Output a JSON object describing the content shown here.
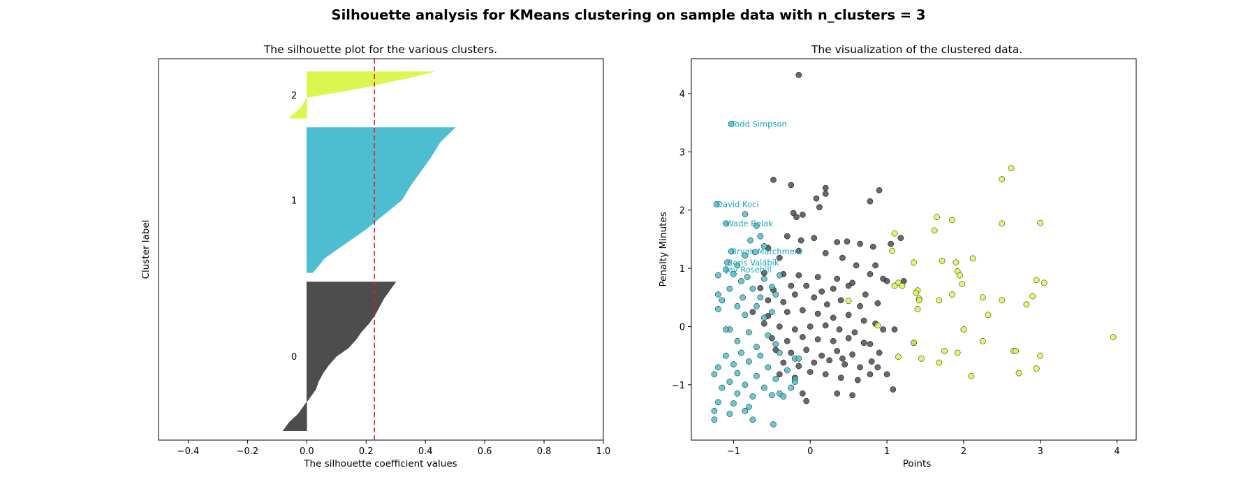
{
  "figure": {
    "suptitle": "Silhouette analysis for KMeans clustering on sample data with n_clusters = 3"
  },
  "chart_data": [
    {
      "type": "area",
      "title": "The silhouette plot for the various clusters.",
      "xlabel": "The silhouette coefficient values",
      "ylabel": "Cluster label",
      "xlim": [
        -0.5,
        1.0
      ],
      "xticks": [
        -0.4,
        -0.2,
        0.0,
        0.2,
        0.4,
        0.6,
        0.8,
        1.0
      ],
      "xtick_labels": [
        "−0.4",
        "−0.2",
        "0.0",
        "0.2",
        "0.4",
        "0.6",
        "0.8",
        "1.0"
      ],
      "ylim": [
        0,
        410
      ],
      "yticks": [],
      "average_silhouette": 0.228,
      "average_line_color": "#d62728",
      "clusters": [
        {
          "label": "0",
          "color": "#4d4d4d",
          "y_lower": 10,
          "y_upper": 170,
          "values_desc": [
            0.3,
            0.28,
            0.26,
            0.245,
            0.23,
            0.21,
            0.185,
            0.165,
            0.14,
            0.1,
            0.075,
            0.055,
            0.04,
            0.03,
            0.01,
            -0.01,
            -0.03,
            -0.06,
            -0.08
          ]
        },
        {
          "label": "1",
          "color": "#4dbecf",
          "y_lower": 180,
          "y_upper": 336,
          "values_desc": [
            0.5,
            0.45,
            0.42,
            0.385,
            0.35,
            0.32,
            0.26,
            0.2,
            0.13,
            0.06,
            0.02
          ]
        },
        {
          "label": "2",
          "color": "#dbf64f",
          "y_lower": 346,
          "y_upper": 396,
          "values_desc": [
            0.43,
            0.36,
            0.275,
            0.2,
            0.1,
            0.0,
            -0.01,
            -0.02,
            -0.04,
            -0.06
          ]
        }
      ]
    },
    {
      "type": "scatter",
      "title": "The visualization of the clustered data.",
      "xlabel": "Points",
      "ylabel": "Penalty Minutes",
      "xlim": [
        -1.55,
        4.25
      ],
      "ylim": [
        -1.95,
        4.6
      ],
      "xticks": [
        -1,
        0,
        1,
        2,
        3,
        4
      ],
      "xtick_labels": [
        "−1",
        "0",
        "1",
        "2",
        "3",
        "4"
      ],
      "yticks": [
        -1,
        0,
        1,
        2,
        3,
        4
      ],
      "ytick_labels": [
        "−1",
        "0",
        "1",
        "2",
        "3",
        "4"
      ],
      "cluster_colors": [
        "#4d4d4d",
        "#4dbecf",
        "#dbf64f"
      ],
      "annotation_color": "#17a8c0",
      "annotations": [
        {
          "text": "Todd Simpson",
          "x": -1.03,
          "y": 3.48
        },
        {
          "text": "David Koci",
          "x": -1.22,
          "y": 2.1
        },
        {
          "text": "Wade Belak",
          "x": -1.1,
          "y": 1.77
        },
        {
          "text": "Bryan Marchment",
          "x": -1.03,
          "y": 1.29
        },
        {
          "text": "Boris Valábik",
          "x": -1.08,
          "y": 1.1
        },
        {
          "text": "Jay Rosehill",
          "x": -1.1,
          "y": 0.98
        }
      ],
      "points_cluster_0": [
        [
          -0.15,
          4.32
        ],
        [
          -0.48,
          2.52
        ],
        [
          -0.25,
          2.43
        ],
        [
          0.08,
          2.2
        ],
        [
          0.2,
          2.38
        ],
        [
          0.2,
          2.28
        ],
        [
          0.78,
          2.15
        ],
        [
          0.9,
          2.34
        ],
        [
          -0.22,
          1.95
        ],
        [
          -0.1,
          1.92
        ],
        [
          0.12,
          2.05
        ],
        [
          -0.18,
          1.88
        ],
        [
          -0.3,
          1.55
        ],
        [
          -0.12,
          1.48
        ],
        [
          0.05,
          1.52
        ],
        [
          0.35,
          1.45
        ],
        [
          0.48,
          1.46
        ],
        [
          0.65,
          1.42
        ],
        [
          0.82,
          1.37
        ],
        [
          1.05,
          1.42
        ],
        [
          1.18,
          1.52
        ],
        [
          -0.55,
          1.35
        ],
        [
          -0.4,
          1.18
        ],
        [
          -0.15,
          1.3
        ],
        [
          0.2,
          1.26
        ],
        [
          0.42,
          1.18
        ],
        [
          0.6,
          1.05
        ],
        [
          0.85,
          1.05
        ],
        [
          0.95,
          0.82
        ],
        [
          -0.6,
          0.92
        ],
        [
          -0.35,
          0.9
        ],
        [
          -0.15,
          0.88
        ],
        [
          0.1,
          0.85
        ],
        [
          0.35,
          0.82
        ],
        [
          0.55,
          0.75
        ],
        [
          0.78,
          0.9
        ],
        [
          1.0,
          0.78
        ],
        [
          1.22,
          0.78
        ],
        [
          -0.65,
          0.66
        ],
        [
          -0.48,
          0.63
        ],
        [
          -0.25,
          0.7
        ],
        [
          -0.05,
          0.7
        ],
        [
          0.15,
          0.6
        ],
        [
          0.3,
          0.65
        ],
        [
          0.5,
          0.7
        ],
        [
          0.72,
          0.55
        ],
        [
          0.88,
          0.4
        ],
        [
          -0.55,
          0.45
        ],
        [
          -0.35,
          0.42
        ],
        [
          -0.2,
          0.55
        ],
        [
          0.05,
          0.5
        ],
        [
          0.22,
          0.38
        ],
        [
          0.4,
          0.45
        ],
        [
          0.65,
          0.35
        ],
        [
          0.85,
          0.05
        ],
        [
          -0.75,
          0.25
        ],
        [
          -0.55,
          0.18
        ],
        [
          -0.3,
          0.25
        ],
        [
          -0.1,
          0.28
        ],
        [
          0.1,
          0.22
        ],
        [
          0.3,
          0.15
        ],
        [
          0.5,
          0.2
        ],
        [
          0.7,
          0.1
        ],
        [
          -0.6,
          0.05
        ],
        [
          -0.4,
          0.0
        ],
        [
          -0.2,
          -0.05
        ],
        [
          0.0,
          0.0
        ],
        [
          0.2,
          0.02
        ],
        [
          0.38,
          -0.05
        ],
        [
          0.58,
          -0.1
        ],
        [
          0.78,
          -0.3
        ],
        [
          0.95,
          -0.05
        ],
        [
          1.1,
          -0.05
        ],
        [
          -0.5,
          -0.2
        ],
        [
          -0.3,
          -0.25
        ],
        [
          -0.1,
          -0.18
        ],
        [
          0.1,
          -0.22
        ],
        [
          0.3,
          -0.25
        ],
        [
          0.5,
          -0.2
        ],
        [
          0.7,
          -0.28
        ],
        [
          0.9,
          -0.45
        ],
        [
          -0.45,
          -0.4
        ],
        [
          -0.25,
          -0.45
        ],
        [
          -0.05,
          -0.4
        ],
        [
          0.15,
          -0.5
        ],
        [
          0.35,
          -0.42
        ],
        [
          0.55,
          -0.48
        ],
        [
          0.8,
          -0.6
        ],
        [
          -0.35,
          -0.62
        ],
        [
          -0.15,
          -0.68
        ],
        [
          0.05,
          -0.62
        ],
        [
          0.25,
          -0.58
        ],
        [
          0.45,
          -0.65
        ],
        [
          0.65,
          -0.7
        ],
        [
          0.88,
          -0.7
        ],
        [
          -0.4,
          -0.82
        ],
        [
          -0.2,
          -0.88
        ],
        [
          0.0,
          -0.78
        ],
        [
          0.2,
          -0.82
        ],
        [
          0.4,
          -0.88
        ],
        [
          0.62,
          -0.92
        ],
        [
          0.78,
          -0.82
        ],
        [
          1.0,
          -0.82
        ],
        [
          -0.1,
          -1.15
        ],
        [
          0.35,
          -1.15
        ],
        [
          0.55,
          -1.18
        ],
        [
          -0.05,
          -1.28
        ],
        [
          1.08,
          -1.08
        ],
        [
          1.35,
          -0.28
        ],
        [
          0.42,
          -0.55
        ]
      ],
      "points_cluster_1": [
        [
          -1.03,
          3.48
        ],
        [
          -1.22,
          2.1
        ],
        [
          -1.1,
          1.77
        ],
        [
          -1.03,
          1.29
        ],
        [
          -1.08,
          1.1
        ],
        [
          -1.1,
          0.98
        ],
        [
          -0.85,
          1.93
        ],
        [
          -0.7,
          1.73
        ],
        [
          -0.65,
          1.55
        ],
        [
          -0.78,
          1.48
        ],
        [
          -0.6,
          1.38
        ],
        [
          -0.72,
          1.28
        ],
        [
          -0.85,
          1.22
        ],
        [
          -0.95,
          1.05
        ],
        [
          -1.0,
          0.9
        ],
        [
          -1.2,
          0.88
        ],
        [
          -0.82,
          0.85
        ],
        [
          -0.6,
          0.82
        ],
        [
          -0.4,
          0.88
        ],
        [
          -0.9,
          0.78
        ],
        [
          -0.75,
          0.65
        ],
        [
          -0.5,
          0.68
        ],
        [
          -1.05,
          0.65
        ],
        [
          -1.2,
          0.55
        ],
        [
          -0.88,
          0.5
        ],
        [
          -0.65,
          0.5
        ],
        [
          -0.45,
          0.55
        ],
        [
          -1.15,
          0.45
        ],
        [
          -0.95,
          0.35
        ],
        [
          -0.7,
          0.35
        ],
        [
          -0.5,
          0.25
        ],
        [
          -1.2,
          0.3
        ],
        [
          -0.85,
          0.2
        ],
        [
          -0.6,
          0.15
        ],
        [
          -1.05,
          -0.05
        ],
        [
          -0.8,
          -0.1
        ],
        [
          -0.55,
          -0.15
        ],
        [
          -0.95,
          -0.25
        ],
        [
          -0.7,
          -0.35
        ],
        [
          -0.45,
          -0.3
        ],
        [
          -1.1,
          -0.5
        ],
        [
          -0.9,
          -0.45
        ],
        [
          -0.65,
          -0.5
        ],
        [
          -0.4,
          -0.45
        ],
        [
          -0.2,
          -0.55
        ],
        [
          -1.0,
          -0.65
        ],
        [
          -0.8,
          -0.6
        ],
        [
          -0.55,
          -0.7
        ],
        [
          -0.3,
          -0.75
        ],
        [
          -1.2,
          -0.7
        ],
        [
          -0.95,
          -0.8
        ],
        [
          -0.7,
          -0.85
        ],
        [
          -0.45,
          -0.9
        ],
        [
          -0.2,
          -0.9
        ],
        [
          -1.25,
          -0.82
        ],
        [
          -1.05,
          -0.95
        ],
        [
          -0.85,
          -1.0
        ],
        [
          -0.6,
          -1.05
        ],
        [
          -0.4,
          -1.15
        ],
        [
          -1.15,
          -1.05
        ],
        [
          -0.95,
          -1.15
        ],
        [
          -0.75,
          -1.2
        ],
        [
          -0.5,
          -1.18
        ],
        [
          -1.2,
          -1.3
        ],
        [
          -1.0,
          -1.32
        ],
        [
          -0.8,
          -1.38
        ],
        [
          -1.25,
          -1.45
        ],
        [
          -1.05,
          -1.5
        ],
        [
          -0.85,
          -1.45
        ],
        [
          -1.25,
          -1.6
        ],
        [
          -0.75,
          -1.6
        ],
        [
          -0.48,
          -1.68
        ],
        [
          -0.15,
          -0.55
        ],
        [
          -0.2,
          -0.95
        ],
        [
          -0.35,
          -1.2
        ],
        [
          -1.1,
          -0.05
        ],
        [
          -0.25,
          -1.05
        ]
      ],
      "points_cluster_2": [
        [
          2.62,
          2.72
        ],
        [
          2.5,
          2.53
        ],
        [
          1.65,
          1.88
        ],
        [
          1.85,
          1.83
        ],
        [
          2.5,
          1.77
        ],
        [
          3.0,
          1.78
        ],
        [
          1.1,
          1.6
        ],
        [
          1.62,
          1.65
        ],
        [
          1.07,
          1.3
        ],
        [
          1.72,
          1.13
        ],
        [
          2.12,
          1.17
        ],
        [
          1.35,
          1.1
        ],
        [
          1.9,
          1.1
        ],
        [
          1.92,
          0.95
        ],
        [
          1.95,
          0.88
        ],
        [
          1.98,
          0.73
        ],
        [
          1.15,
          0.75
        ],
        [
          1.1,
          0.7
        ],
        [
          1.2,
          0.7
        ],
        [
          1.4,
          0.62
        ],
        [
          1.38,
          0.58
        ],
        [
          2.95,
          0.8
        ],
        [
          3.05,
          0.75
        ],
        [
          1.85,
          0.55
        ],
        [
          1.42,
          0.48
        ],
        [
          1.42,
          0.45
        ],
        [
          1.68,
          0.45
        ],
        [
          2.25,
          0.5
        ],
        [
          2.5,
          0.45
        ],
        [
          2.9,
          0.52
        ],
        [
          2.82,
          0.38
        ],
        [
          1.4,
          0.3
        ],
        [
          2.32,
          0.2
        ],
        [
          0.5,
          0.44
        ],
        [
          0.88,
          0.02
        ],
        [
          2.0,
          -0.05
        ],
        [
          3.95,
          -0.18
        ],
        [
          1.35,
          -0.28
        ],
        [
          2.25,
          -0.25
        ],
        [
          1.75,
          -0.42
        ],
        [
          1.92,
          -0.45
        ],
        [
          2.65,
          -0.42
        ],
        [
          2.68,
          -0.42
        ],
        [
          3.0,
          -0.5
        ],
        [
          1.15,
          -0.52
        ],
        [
          1.45,
          -0.55
        ],
        [
          1.68,
          -0.62
        ],
        [
          2.95,
          -0.72
        ],
        [
          2.72,
          -0.8
        ],
        [
          2.1,
          -0.85
        ]
      ]
    }
  ]
}
